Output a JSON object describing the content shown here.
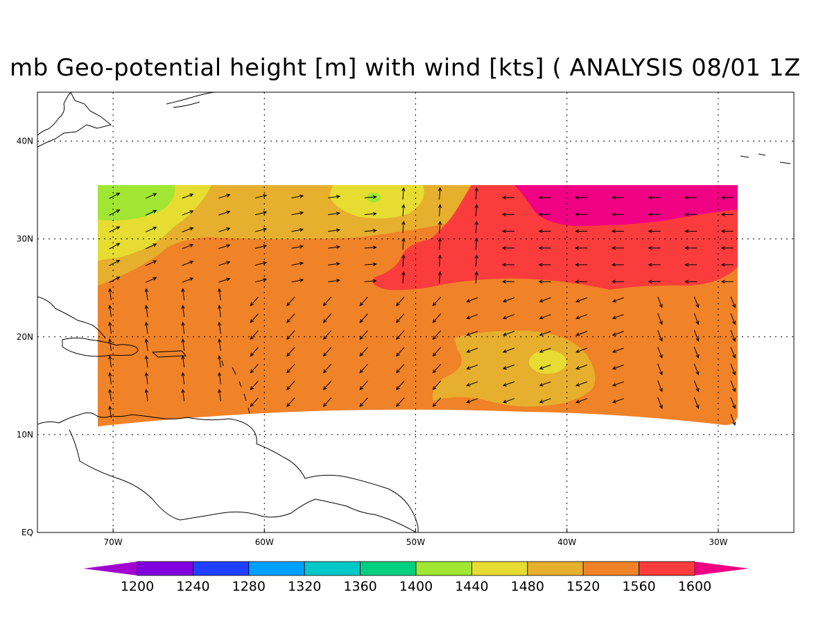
{
  "title": "mb Geo-potential height [m] with wind [kts] ( ANALYSIS 08/01 1Z",
  "map": {
    "lon_range": [
      -75,
      -25
    ],
    "lat_range": [
      0,
      45
    ],
    "lon_ticks": [
      {
        "value": -70,
        "label": "70W"
      },
      {
        "value": -60,
        "label": "60W"
      },
      {
        "value": -50,
        "label": "50W"
      },
      {
        "value": -40,
        "label": "40W"
      },
      {
        "value": -30,
        "label": "30W"
      }
    ],
    "lat_ticks": [
      {
        "value": 0,
        "label": "EQ"
      },
      {
        "value": 10,
        "label": "10N"
      },
      {
        "value": 20,
        "label": "20N"
      },
      {
        "value": 30,
        "label": "30N"
      },
      {
        "value": 40,
        "label": "40N"
      }
    ],
    "grid": "dotted",
    "data_domain": {
      "lon": [
        -71,
        -29
      ],
      "lat_north": 35.5
    }
  },
  "colorbar": {
    "levels": [
      "1200",
      "1240",
      "1280",
      "1320",
      "1360",
      "1400",
      "1440",
      "1480",
      "1520",
      "1560",
      "1600"
    ],
    "colors": [
      "#a000d0",
      "#8000e0",
      "#2040ff",
      "#00a0ff",
      "#00c8c8",
      "#00d080",
      "#a0e632",
      "#e6dc32",
      "#e6af2d",
      "#f08228",
      "#fa3c3c",
      "#f00082"
    ]
  }
}
